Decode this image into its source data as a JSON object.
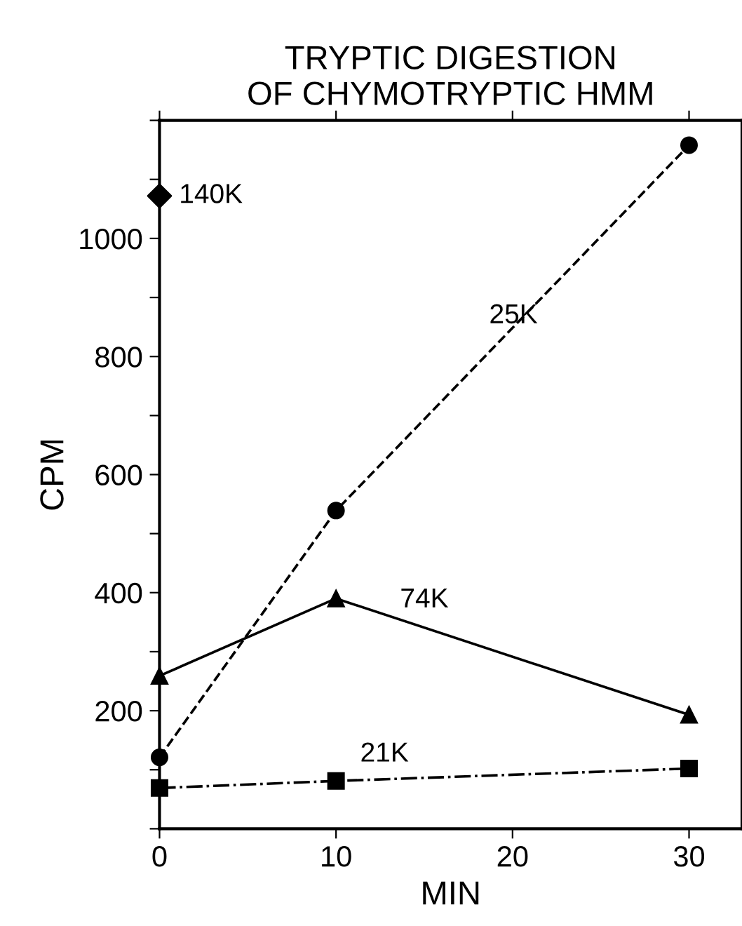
{
  "chart_data": {
    "type": "line",
    "title": "TRYPTIC DIGESTION\nOF CHYMOTRYPTIC HMM",
    "xlabel": "MIN",
    "ylabel": "CPM",
    "series": [
      {
        "name": "140K",
        "type": "scatter",
        "x": [
          0
        ],
        "values": [
          1072
        ],
        "color": "#000000",
        "marker": "diamond"
      },
      {
        "name": "25K",
        "x": [
          0,
          10,
          30
        ],
        "values": [
          121,
          539,
          1158
        ],
        "color": "#000000",
        "marker": "circle",
        "line_style": "dashed"
      },
      {
        "name": "74K",
        "x": [
          0,
          10,
          30
        ],
        "values": [
          259,
          390,
          193
        ],
        "color": "#000000",
        "marker": "triangle",
        "line_style": "solid"
      },
      {
        "name": "21K",
        "x": [
          0,
          10,
          30
        ],
        "values": [
          69,
          81,
          102
        ],
        "color": "#000000",
        "marker": "square",
        "line_style": "dashdot"
      }
    ],
    "xlim": [
      0,
      33
    ],
    "xticks": [
      0,
      10,
      20,
      30
    ],
    "ylim": [
      0,
      1200
    ],
    "yticks": [
      {
        "value": 0,
        "label": null
      },
      {
        "value": 100,
        "label": null
      },
      200,
      {
        "value": 300,
        "label": null
      },
      400,
      {
        "value": 500,
        "label": null
      },
      600,
      {
        "value": 700,
        "label": null
      },
      800,
      {
        "value": 900,
        "label": null
      },
      1000,
      {
        "value": 1100,
        "label": null
      },
      {
        "value": 1200,
        "label": null
      }
    ],
    "grid": false,
    "legend": false
  }
}
